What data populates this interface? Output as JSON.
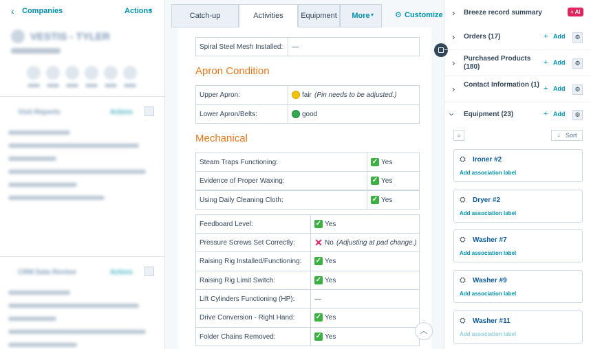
{
  "left": {
    "back": "Companies",
    "actions": "Actions",
    "company": "VESTIS - TYLER",
    "sections": [
      "Visit Reports",
      "CRM Data Review"
    ],
    "section_actions": "Actions"
  },
  "tabs": [
    "Catch-up",
    "Activities",
    "Equipment",
    "More"
  ],
  "active_tab": 1,
  "customize": "Customize",
  "activities": {
    "top_rows": [
      {
        "label": "Spiral Steel Mesh Installed:",
        "value": "—",
        "status": "none"
      }
    ],
    "sections": [
      {
        "heading": "Apron Condition",
        "tables": [
          [
            {
              "label": "Upper Apron:",
              "status": "yellow",
              "value": "fair",
              "note": "(Pin needs to be adjusted.)"
            },
            {
              "label": "Lower Apron/Belts:",
              "status": "green",
              "value": "good"
            }
          ]
        ]
      },
      {
        "heading": "Mechanical",
        "tables": [
          [
            {
              "label": "Steam Traps Functioning:",
              "status": "check",
              "value": "Yes"
            },
            {
              "label": "Evidence of Proper Waxing:",
              "status": "check",
              "value": "Yes"
            },
            {
              "label": "Using Daily Cleaning Cloth:",
              "status": "check",
              "value": "Yes"
            }
          ],
          [
            {
              "label": "Feedboard Level:",
              "status": "check",
              "value": "Yes"
            },
            {
              "label": "Pressure Screws Set Correctly:",
              "status": "cross",
              "value": "No",
              "note": "(Adjusting at pad change.)"
            },
            {
              "label": "Raising Rig Installed/Functioning:",
              "status": "check",
              "value": "Yes"
            },
            {
              "label": "Raising Rig Limit Switch:",
              "status": "check",
              "value": "Yes"
            },
            {
              "label": "Lift Cylinders Functioning (HP):",
              "status": "none",
              "value": "—"
            },
            {
              "label": "Drive Conversion - Right Hand:",
              "status": "check",
              "value": "Yes"
            },
            {
              "label": "Folder Chains Removed:",
              "status": "check",
              "value": "Yes"
            }
          ]
        ]
      }
    ]
  },
  "panel": {
    "breeze": "Breeze record summary",
    "ai": "AI",
    "add": "Add",
    "sort": "Sort",
    "sections": [
      {
        "title": "Orders (17)",
        "open": false
      },
      {
        "title": "Purchased Products (180)",
        "open": false
      },
      {
        "title": "Contact Information (1)",
        "open": false
      },
      {
        "title": "Equipment (23)",
        "open": true
      }
    ],
    "cards": [
      "Ironer #2",
      "Dryer #2",
      "Washer #7",
      "Washer #9",
      "Washer #11"
    ],
    "card_sub": "Add association label"
  }
}
